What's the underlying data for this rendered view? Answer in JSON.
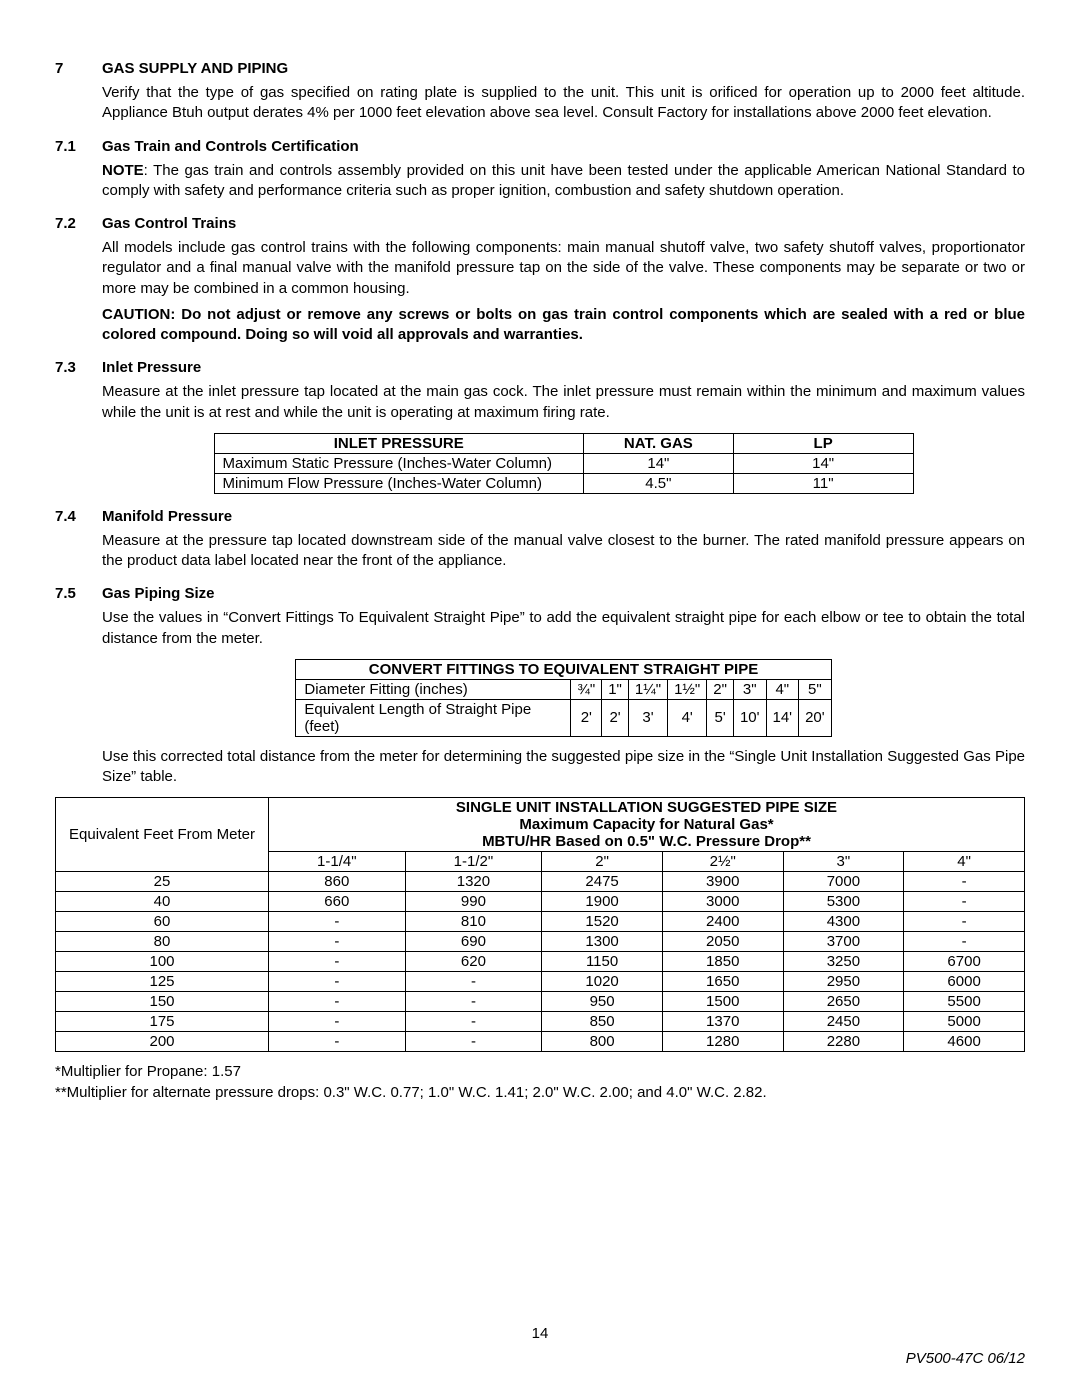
{
  "page_number": "14",
  "doc_id": "PV500-47C  06/12",
  "sections": {
    "s7": {
      "num": "7",
      "title": "GAS SUPPLY AND PIPING",
      "body": "Verify that the type of gas specified on rating plate is supplied to the unit. This unit is orificed for operation up to 2000 feet altitude. Appliance Btuh output derates 4% per 1000 feet elevation above sea level. Consult Factory for installations above 2000 feet elevation."
    },
    "s7_1": {
      "num": "7.1",
      "title": "Gas Train and Controls Certification",
      "note_lead": "NOTE",
      "body": ": The gas train and controls assembly provided on this unit have been tested under the applicable American National Standard to comply with safety and performance criteria such as proper ignition, combustion and safety shutdown operation."
    },
    "s7_2": {
      "num": "7.2",
      "title": "Gas Control Trains",
      "body": "All models include gas control trains with the following components: main manual shutoff valve, two safety shutoff valves, proportionator regulator and a final manual valve with the manifold pressure tap on the side of the valve. These components may be separate or two or more may be combined in a common housing.",
      "caution": "CAUTION: Do not adjust or remove any screws or bolts on gas train control components which are sealed with a red or blue colored compound. Doing so will void all approvals and warranties."
    },
    "s7_3": {
      "num": "7.3",
      "title": "Inlet Pressure",
      "body": "Measure at the inlet pressure tap located at the main gas cock. The inlet pressure must remain within the minimum and maximum values while the unit is at rest and while the unit is operating at maximum firing rate."
    },
    "s7_4": {
      "num": "7.4",
      "title": "Manifold Pressure",
      "body": "Measure at the pressure tap located downstream side of the manual valve closest to the burner. The rated manifold pressure appears on the product data label located near the front of the appliance."
    },
    "s7_5": {
      "num": "7.5",
      "title": "Gas Piping Size",
      "body1": "Use the values in “Convert Fittings To Equivalent Straight Pipe” to add the equivalent straight pipe for each elbow or tee to obtain the total distance from the meter.",
      "body2": "Use this corrected total distance from the meter for determining the suggested pipe size in the “Single Unit Installation Suggested Gas Pipe Size” table."
    }
  },
  "inlet_table": {
    "headers": [
      "INLET PRESSURE",
      "NAT. GAS",
      "LP"
    ],
    "rows": [
      [
        "Maximum Static Pressure (Inches-Water Column)",
        "14\"",
        "14\""
      ],
      [
        "Minimum Flow Pressure (Inches-Water Column)",
        "4.5\"",
        "11\""
      ]
    ],
    "col_widths": [
      "370px",
      "150px",
      "180px"
    ]
  },
  "fittings_table": {
    "title": "CONVERT FITTINGS TO EQUIVALENT STRAIGHT PIPE",
    "rows": [
      [
        "Diameter Fitting (inches)",
        "¾\"",
        "1\"",
        "1¼\"",
        "1½\"",
        "2\"",
        "3\"",
        "4\"",
        "5\""
      ],
      [
        "Equivalent Length of Straight Pipe (feet)",
        "2'",
        "2'",
        "3'",
        "4'",
        "5'",
        "10'",
        "14'",
        "20'"
      ]
    ]
  },
  "pipe_table": {
    "title1": "SINGLE UNIT INSTALLATION SUGGESTED PIPE SIZE",
    "title2": "Maximum Capacity for Natural Gas*",
    "title3": "MBTU/HR Based on 0.5\" W.C. Pressure Drop**",
    "left_header": "Equivalent Feet From Meter",
    "size_headers": [
      "1-1/4\"",
      "1-1/2\"",
      "2\"",
      "2½\"",
      "3\"",
      "4\""
    ],
    "rows": [
      [
        "25",
        "860",
        "1320",
        "2475",
        "3900",
        "7000",
        "-"
      ],
      [
        "40",
        "660",
        "990",
        "1900",
        "3000",
        "5300",
        "-"
      ],
      [
        "60",
        "-",
        "810",
        "1520",
        "2400",
        "4300",
        "-"
      ],
      [
        "80",
        "-",
        "690",
        "1300",
        "2050",
        "3700",
        "-"
      ],
      [
        "100",
        "-",
        "620",
        "1150",
        "1850",
        "3250",
        "6700"
      ],
      [
        "125",
        "-",
        "-",
        "1020",
        "1650",
        "2950",
        "6000"
      ],
      [
        "150",
        "-",
        "-",
        "950",
        "1500",
        "2650",
        "5500"
      ],
      [
        "175",
        "-",
        "-",
        "850",
        "1370",
        "2450",
        "5000"
      ],
      [
        "200",
        "-",
        "-",
        "800",
        "1280",
        "2280",
        "4600"
      ]
    ]
  },
  "footnotes": {
    "f1": "*Multiplier for Propane: 1.57",
    "f2": "**Multiplier for alternate pressure drops: 0.3\" W.C. 0.77; 1.0\" W.C. 1.41; 2.0\" W.C. 2.00; and 4.0\" W.C. 2.82."
  }
}
